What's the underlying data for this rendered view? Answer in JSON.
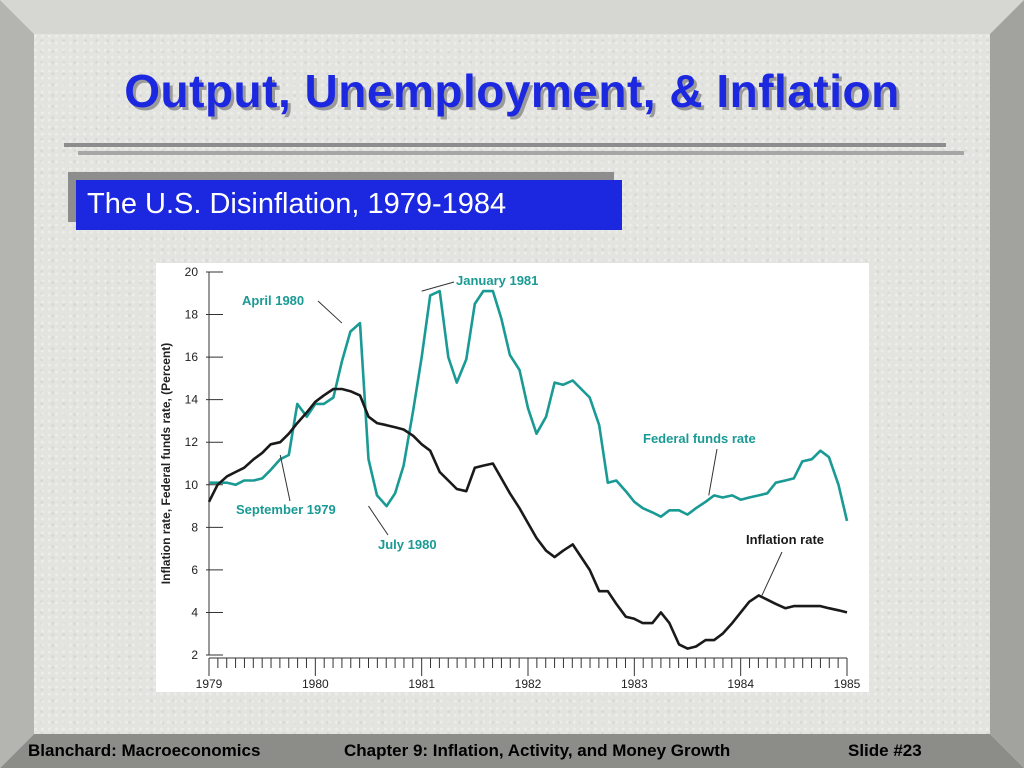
{
  "slide": {
    "title": "Output, Unemployment, & Inflation",
    "subtitle": "The U.S. Disinflation, 1979-1984"
  },
  "footer": {
    "left": "Blanchard: Macroeconomics",
    "center": "Chapter 9: Inflation, Activity, and Money Growth",
    "right": "Slide #23"
  },
  "colors": {
    "title": "#1c28e0",
    "subtitle_bg": "#1c28e0",
    "fed_funds": "#1a9a94",
    "inflation": "#1a1a1a"
  },
  "chart_data": {
    "type": "line",
    "title": "",
    "xlabel": "",
    "ylabel": "Inflation rate, Federal funds rate, (Percent)",
    "xlim": [
      1979,
      1985
    ],
    "ylim": [
      2,
      20
    ],
    "x_ticks": [
      "1979",
      "1980",
      "1981",
      "1982",
      "1983",
      "1984",
      "1985"
    ],
    "y_ticks": [
      "2",
      "4",
      "6",
      "8",
      "10",
      "12",
      "14",
      "16",
      "18",
      "20"
    ],
    "grid": false,
    "series": [
      {
        "name": "Federal funds rate",
        "x": [
          1979.0,
          1979.08,
          1979.17,
          1979.25,
          1979.33,
          1979.42,
          1979.5,
          1979.58,
          1979.67,
          1979.75,
          1979.83,
          1979.92,
          1980.0,
          1980.08,
          1980.17,
          1980.25,
          1980.33,
          1980.42,
          1980.5,
          1980.58,
          1980.67,
          1980.75,
          1980.83,
          1980.92,
          1981.0,
          1981.08,
          1981.17,
          1981.25,
          1981.33,
          1981.42,
          1981.5,
          1981.58,
          1981.67,
          1981.75,
          1981.83,
          1981.92,
          1982.0,
          1982.08,
          1982.17,
          1982.25,
          1982.33,
          1982.42,
          1982.5,
          1982.58,
          1982.67,
          1982.75,
          1982.83,
          1982.92,
          1983.0,
          1983.08,
          1983.17,
          1983.25,
          1983.33,
          1983.42,
          1983.5,
          1983.58,
          1983.67,
          1983.75,
          1983.83,
          1983.92,
          1984.0,
          1984.08,
          1984.17,
          1984.25,
          1984.33,
          1984.42,
          1984.5,
          1984.58,
          1984.67,
          1984.75,
          1984.83,
          1984.92,
          1985.0
        ],
        "values": [
          10.1,
          10.1,
          10.1,
          10.0,
          10.2,
          10.2,
          10.3,
          10.7,
          11.2,
          11.4,
          13.8,
          13.2,
          13.8,
          13.8,
          14.1,
          15.8,
          17.2,
          17.6,
          11.2,
          9.5,
          9.0,
          9.6,
          10.9,
          13.5,
          16.0,
          18.9,
          19.1,
          16.0,
          14.8,
          15.9,
          18.5,
          19.1,
          19.1,
          17.8,
          16.1,
          15.4,
          13.6,
          12.4,
          13.2,
          14.8,
          14.7,
          14.9,
          14.5,
          14.1,
          12.8,
          10.1,
          10.2,
          9.7,
          9.2,
          8.9,
          8.7,
          8.5,
          8.8,
          8.8,
          8.6,
          8.9,
          9.2,
          9.5,
          9.4,
          9.5,
          9.3,
          9.4,
          9.5,
          9.6,
          10.1,
          10.2,
          10.3,
          11.1,
          11.2,
          11.6,
          11.3,
          10.0,
          8.3
        ]
      },
      {
        "name": "Inflation rate",
        "x": [
          1979.0,
          1979.08,
          1979.17,
          1979.25,
          1979.33,
          1979.42,
          1979.5,
          1979.58,
          1979.67,
          1979.75,
          1979.83,
          1979.92,
          1980.0,
          1980.08,
          1980.17,
          1980.25,
          1980.33,
          1980.42,
          1980.5,
          1980.58,
          1980.67,
          1980.75,
          1980.83,
          1980.92,
          1981.0,
          1981.08,
          1981.17,
          1981.25,
          1981.33,
          1981.42,
          1981.5,
          1981.58,
          1981.67,
          1981.75,
          1981.83,
          1981.92,
          1982.0,
          1982.08,
          1982.17,
          1982.25,
          1982.33,
          1982.42,
          1982.5,
          1982.58,
          1982.67,
          1982.75,
          1982.83,
          1982.92,
          1983.0,
          1983.08,
          1983.17,
          1983.25,
          1983.33,
          1983.42,
          1983.5,
          1983.58,
          1983.67,
          1983.75,
          1983.83,
          1983.92,
          1984.0,
          1984.08,
          1984.17,
          1984.25,
          1984.33,
          1984.42,
          1984.5,
          1984.58,
          1984.67,
          1984.75,
          1984.83,
          1984.92,
          1985.0
        ],
        "values": [
          9.2,
          10.0,
          10.4,
          10.6,
          10.8,
          11.2,
          11.5,
          11.9,
          12.0,
          12.4,
          12.9,
          13.4,
          13.9,
          14.2,
          14.5,
          14.5,
          14.4,
          14.2,
          13.2,
          12.9,
          12.8,
          12.7,
          12.6,
          12.3,
          11.9,
          11.6,
          10.6,
          10.2,
          9.8,
          9.7,
          10.8,
          10.9,
          11.0,
          10.3,
          9.6,
          8.9,
          8.2,
          7.5,
          6.9,
          6.6,
          6.9,
          7.2,
          6.6,
          6.0,
          5.0,
          5.0,
          4.4,
          3.8,
          3.7,
          3.5,
          3.5,
          4.0,
          3.5,
          2.5,
          2.3,
          2.4,
          2.7,
          2.7,
          3.0,
          3.5,
          4.0,
          4.5,
          4.8,
          4.6,
          4.4,
          4.2,
          4.3,
          4.3,
          4.3,
          4.3,
          4.2,
          4.1,
          4.0
        ]
      }
    ],
    "annotations": [
      {
        "text": "April 1980",
        "x": 1980.25,
        "y": 17.6,
        "series": "Federal funds rate"
      },
      {
        "text": "January 1981",
        "x": 1981.0,
        "y": 19.1,
        "series": "Federal funds rate"
      },
      {
        "text": "September 1979",
        "x": 1979.67,
        "y": 11.4,
        "series": "Federal funds rate"
      },
      {
        "text": "July 1980",
        "x": 1980.5,
        "y": 9.0,
        "series": "Federal funds rate"
      },
      {
        "text": "Federal funds rate",
        "x": 1983.7,
        "y": 9.5,
        "series": "Federal funds rate"
      },
      {
        "text": "Inflation rate",
        "x": 1984.2,
        "y": 4.8,
        "series": "Inflation rate"
      }
    ]
  }
}
